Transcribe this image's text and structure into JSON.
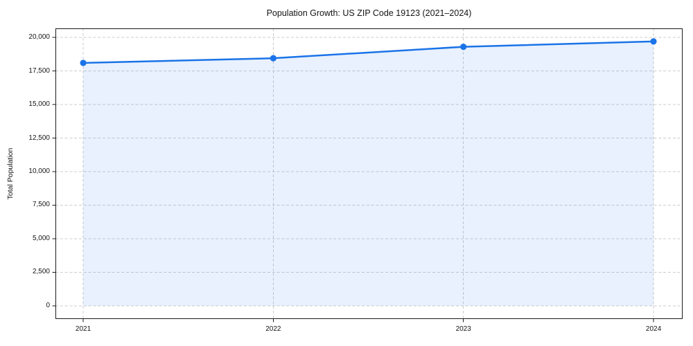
{
  "chart_data": {
    "type": "area",
    "title": "Population Growth: US ZIP Code 19123 (2021–2024)",
    "xlabel": "",
    "ylabel": "Total Population",
    "categories": [
      "2021",
      "2022",
      "2023",
      "2024"
    ],
    "x": [
      2021,
      2022,
      2023,
      2024
    ],
    "series": [
      {
        "name": "Total Population",
        "values": [
          18100,
          18450,
          19300,
          19700
        ]
      }
    ],
    "xlim": [
      2020.854,
      2024.153
    ],
    "ylim": [
      -985,
      20675
    ],
    "yticks": [
      0,
      2500,
      5000,
      7500,
      10000,
      12500,
      15000,
      17500,
      20000
    ],
    "ytick_labels": [
      "0",
      "2,500",
      "5,000",
      "7,500",
      "10,000",
      "12,500",
      "15,000",
      "17,500",
      "20,000"
    ],
    "grid": true,
    "grid_style": "dashed",
    "legend": "none",
    "baseline": 0,
    "colors": {
      "line": "#1a73e8",
      "marker": "#1a73e8",
      "fill": "rgba(26,115,232,0.10)",
      "gridline": "#cccccc",
      "spine": "#1a1a1a",
      "text": "#141414"
    }
  }
}
